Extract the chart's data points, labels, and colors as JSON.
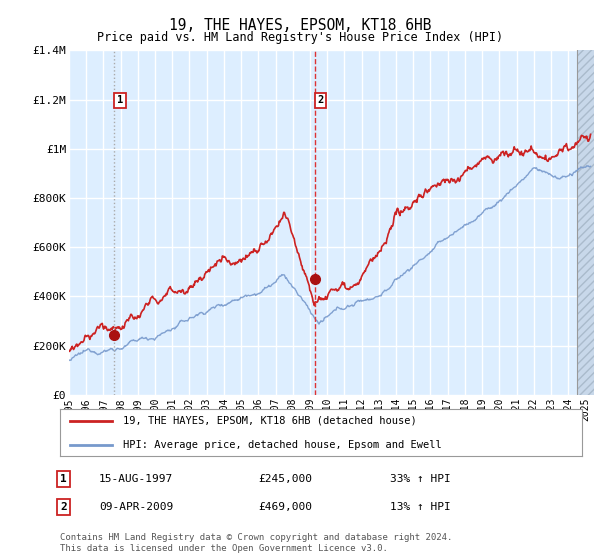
{
  "title": "19, THE HAYES, EPSOM, KT18 6HB",
  "subtitle": "Price paid vs. HM Land Registry's House Price Index (HPI)",
  "bg_color": "#ddeeff",
  "grid_color": "#ffffff",
  "line1_color": "#cc2222",
  "line2_color": "#7799cc",
  "marker_color": "#aa1111",
  "dashed_line1_color": "#bbbbbb",
  "dashed_line2_color": "#dd3333",
  "ylim": [
    0,
    1400000
  ],
  "yticks": [
    0,
    200000,
    400000,
    600000,
    800000,
    1000000,
    1200000,
    1400000
  ],
  "ytick_labels": [
    "£0",
    "£200K",
    "£400K",
    "£600K",
    "£800K",
    "£1M",
    "£1.2M",
    "£1.4M"
  ],
  "xlabel_years": [
    "1995",
    "1996",
    "1997",
    "1998",
    "1999",
    "2000",
    "2001",
    "2002",
    "2003",
    "2004",
    "2005",
    "2006",
    "2007",
    "2008",
    "2009",
    "2010",
    "2011",
    "2012",
    "2013",
    "2014",
    "2015",
    "2016",
    "2017",
    "2018",
    "2019",
    "2020",
    "2021",
    "2022",
    "2023",
    "2024",
    "2025"
  ],
  "sale1_year": 1997.62,
  "sale1_price": 245000,
  "sale1_label": "1",
  "sale1_date": "15-AUG-1997",
  "sale1_hpi_pct": "33% ↑ HPI",
  "sale2_year": 2009.27,
  "sale2_price": 469000,
  "sale2_label": "2",
  "sale2_date": "09-APR-2009",
  "sale2_hpi_pct": "13% ↑ HPI",
  "legend1_label": "19, THE HAYES, EPSOM, KT18 6HB (detached house)",
  "legend2_label": "HPI: Average price, detached house, Epsom and Ewell",
  "footer": "Contains HM Land Registry data © Crown copyright and database right 2024.\nThis data is licensed under the Open Government Licence v3.0.",
  "hatch_start_year": 2024.5,
  "xlim_left": 1995,
  "xlim_right": 2025.5
}
